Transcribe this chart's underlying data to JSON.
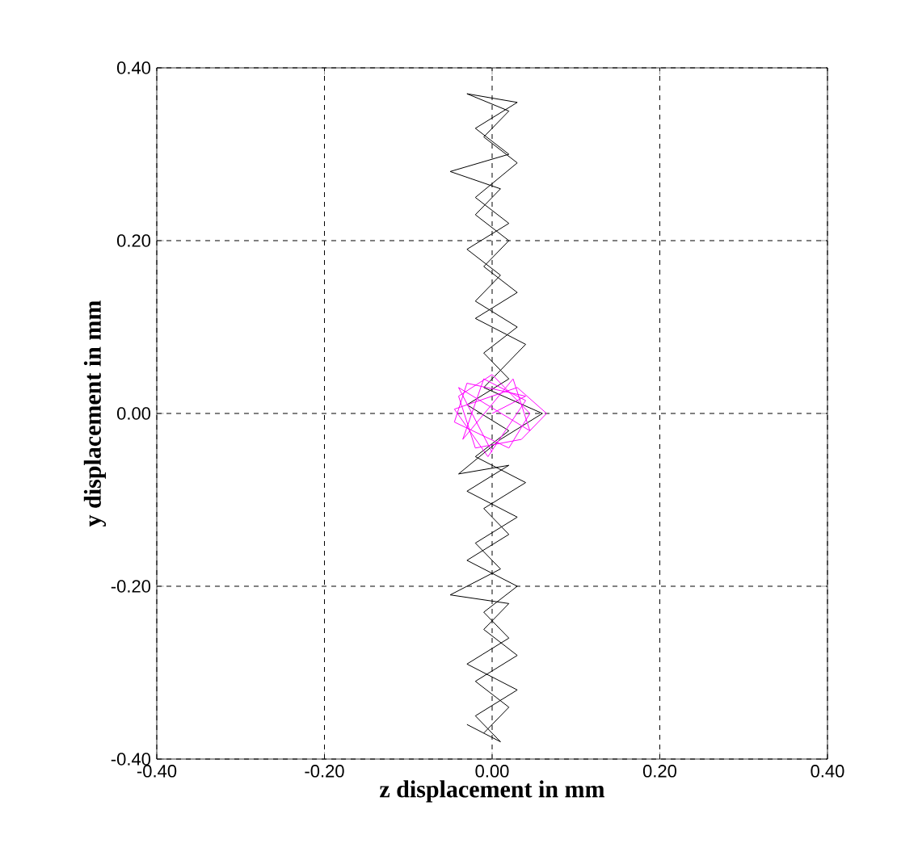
{
  "chart_data": {
    "type": "line",
    "xlabel": "z displacement in mm",
    "ylabel": "y displacement in mm",
    "xlim": [
      -0.4,
      0.4
    ],
    "ylim": [
      -0.4,
      0.4
    ],
    "xticks": [
      {
        "value": -0.4,
        "label": "-0.40"
      },
      {
        "value": -0.2,
        "label": "-0.20"
      },
      {
        "value": 0,
        "label": "0.00"
      },
      {
        "value": 0.2,
        "label": "0.20"
      },
      {
        "value": 0.4,
        "label": "0.40"
      }
    ],
    "yticks": [
      {
        "value": -0.4,
        "label": "-0.40"
      },
      {
        "value": -0.2,
        "label": "-0.20"
      },
      {
        "value": 0,
        "label": "0.00"
      },
      {
        "value": 0.2,
        "label": "0.20"
      },
      {
        "value": 0.4,
        "label": "0.40"
      }
    ],
    "grid": true,
    "marker": "none",
    "line_style": "solid",
    "series": [
      {
        "color": "#000000",
        "x": [
          -0.01,
          0.02,
          -0.02,
          0.03,
          -0.01,
          0.02,
          -0.05,
          0.01,
          -0.02,
          0.03,
          -0.03,
          0.02,
          -0.04,
          0.01,
          0.06,
          -0.01,
          0.04,
          -0.02,
          0.03,
          -0.01,
          0.02,
          -0.02,
          0.01,
          -0.05,
          0.02,
          -0.02,
          0.03,
          -0.03,
          0.02,
          -0.01,
          0.03,
          -0.02,
          0.02,
          -0.03,
          0.01,
          -0.02,
          0.03,
          -0.01,
          0.02,
          -0.03,
          0.02,
          -0.02,
          0.04,
          -0.01,
          0.02,
          -0.03,
          0.03,
          -0.01,
          0.02,
          -0.03,
          0.03,
          -0.02,
          0.01,
          -0.03
        ],
        "values": [
          -0.37,
          -0.34,
          -0.31,
          -0.28,
          -0.25,
          -0.22,
          -0.21,
          -0.18,
          -0.15,
          -0.12,
          -0.09,
          -0.06,
          -0.07,
          -0.03,
          0.0,
          0.03,
          0.08,
          0.11,
          0.14,
          0.17,
          0.2,
          0.23,
          0.26,
          0.28,
          0.3,
          0.33,
          0.36,
          0.37,
          0.35,
          0.32,
          0.29,
          0.25,
          0.22,
          0.19,
          0.16,
          0.13,
          0.1,
          0.07,
          0.04,
          0.01,
          -0.02,
          -0.05,
          -0.08,
          -0.11,
          -0.14,
          -0.17,
          -0.2,
          -0.23,
          -0.26,
          -0.29,
          -0.32,
          -0.35,
          -0.38,
          -0.36
        ]
      },
      {
        "color": "#ff00ff",
        "x": [
          0.0,
          0.04,
          -0.03,
          -0.045,
          0.02,
          0.045,
          0.0,
          -0.04,
          -0.02,
          0.035,
          0.065,
          0.03,
          -0.045,
          -0.005,
          0.04,
          -0.01,
          -0.035,
          0.025,
          0.045,
          -0.04,
          0.0
        ],
        "values": [
          0.0,
          0.02,
          0.035,
          -0.01,
          -0.04,
          0.0,
          0.045,
          0.02,
          -0.04,
          -0.03,
          0.0,
          0.03,
          0.005,
          -0.05,
          0.015,
          0.04,
          -0.03,
          0.04,
          -0.02,
          0.03,
          -0.045
        ]
      }
    ]
  }
}
